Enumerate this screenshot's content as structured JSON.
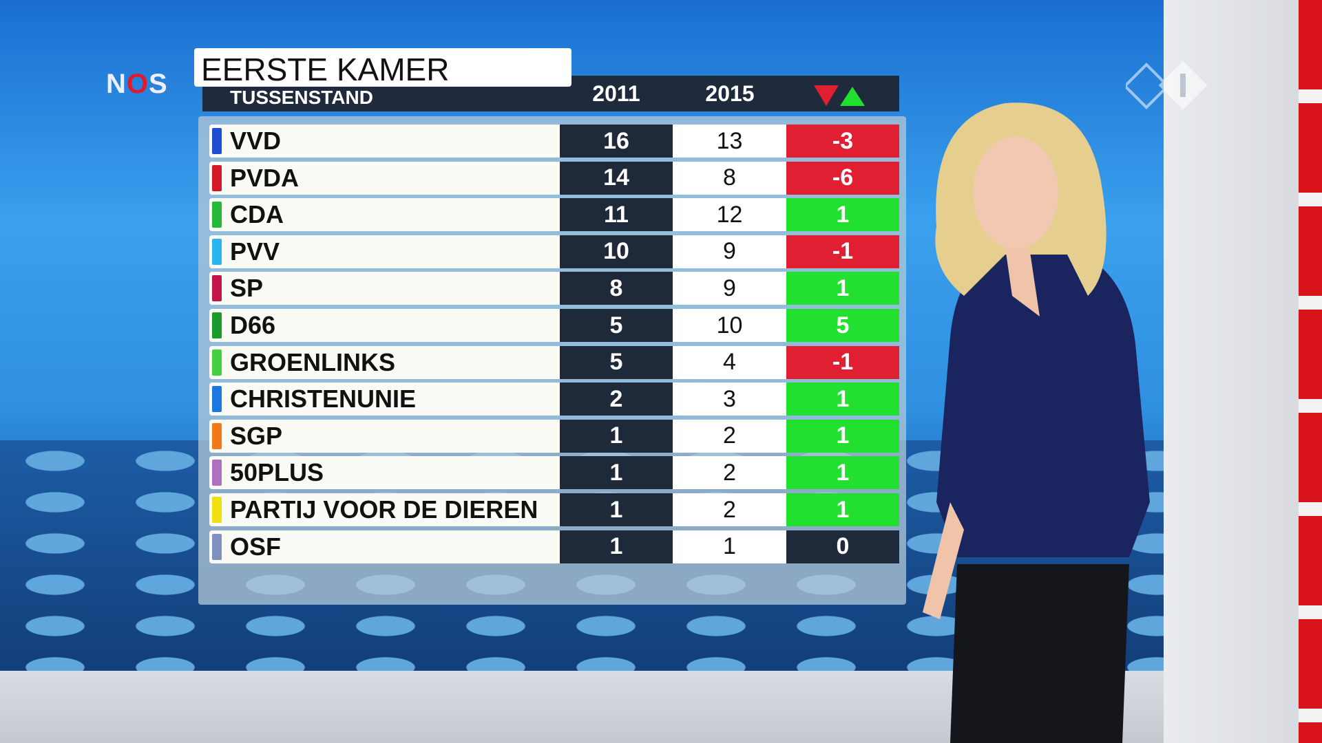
{
  "logo": {
    "brand_left": "N",
    "brand_o": "O",
    "brand_right": "S",
    "channel": "npo 1"
  },
  "title": "EERSTE KAMER",
  "subtitle": "TUSSENSTAND",
  "columns": [
    "2011",
    "2015"
  ],
  "change_icon": "down-up-triangles",
  "colors": {
    "increase": "#22e030",
    "decrease": "#e01f32",
    "neutral": "#1e2a3a"
  },
  "rows": [
    {
      "party": "VVD",
      "color": "#1f4fd0",
      "y2011": "16",
      "y2015": "13",
      "change": "-3"
    },
    {
      "party": "PVDA",
      "color": "#d41a2a",
      "y2011": "14",
      "y2015": "8",
      "change": "-6"
    },
    {
      "party": "CDA",
      "color": "#26b83a",
      "y2011": "11",
      "y2015": "12",
      "change": "1"
    },
    {
      "party": "PVV",
      "color": "#2ab4f0",
      "y2011": "10",
      "y2015": "9",
      "change": "-1"
    },
    {
      "party": "SP",
      "color": "#c4154a",
      "y2011": "8",
      "y2015": "9",
      "change": "1"
    },
    {
      "party": "D66",
      "color": "#1a9a2a",
      "y2011": "5",
      "y2015": "10",
      "change": "5"
    },
    {
      "party": "GROENLINKS",
      "color": "#44d040",
      "y2011": "5",
      "y2015": "4",
      "change": "-1"
    },
    {
      "party": "CHRISTENUNIE",
      "color": "#1a78e0",
      "y2011": "2",
      "y2015": "3",
      "change": "1"
    },
    {
      "party": "SGP",
      "color": "#f07a1a",
      "y2011": "1",
      "y2015": "2",
      "change": "1"
    },
    {
      "party": "50PLUS",
      "color": "#b070c0",
      "y2011": "1",
      "y2015": "2",
      "change": "1"
    },
    {
      "party": "PARTIJ VOOR DE DIEREN",
      "color": "#f0e010",
      "y2011": "1",
      "y2015": "2",
      "change": "1"
    },
    {
      "party": "OSF",
      "color": "#8090c0",
      "y2011": "1",
      "y2015": "1",
      "change": "0"
    }
  ]
}
